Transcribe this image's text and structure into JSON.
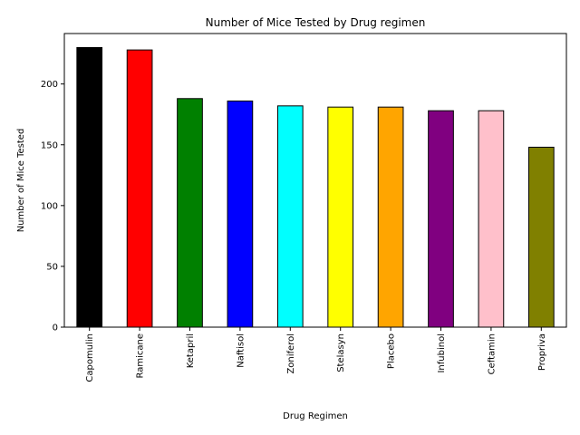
{
  "chart_data": {
    "type": "bar",
    "title": "Number of Mice Tested by Drug regimen",
    "xlabel": "Drug Regimen",
    "ylabel": "Number of Mice Tested",
    "categories": [
      "Capomulin",
      "Ramicane",
      "Ketapril",
      "Naftisol",
      "Zoniferol",
      "Stelasyn",
      "Placebo",
      "Infubinol",
      "Ceftamin",
      "Propriva"
    ],
    "values": [
      230,
      228,
      188,
      186,
      182,
      181,
      181,
      178,
      178,
      148
    ],
    "colors": [
      "#000000",
      "#ff0000",
      "#008000",
      "#0000ff",
      "#00ffff",
      "#ffff00",
      "#ffa500",
      "#800080",
      "#ffc0cb",
      "#808000"
    ],
    "edgecolor": "#000000",
    "ylim": [
      0,
      241.5
    ],
    "yticks": [
      0,
      50,
      100,
      150,
      200
    ],
    "grid": false,
    "legend": "none"
  }
}
